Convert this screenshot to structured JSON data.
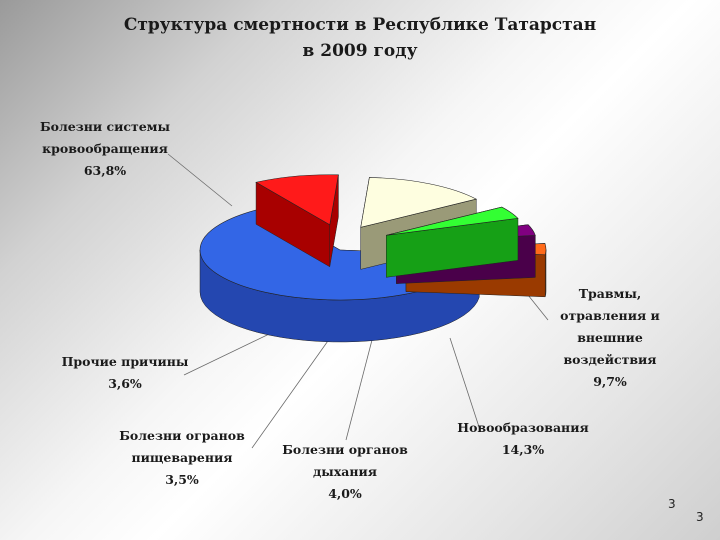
{
  "chart_data": {
    "type": "pie",
    "title_line1": "Структура смертности в Республике Татарстан",
    "title_line2": "в 2009 году",
    "slices": [
      {
        "label_lines": [
          "Болезни системы",
          "кровообращения"
        ],
        "value_text": "63,8%",
        "value": 63.8,
        "color": "#3366e6",
        "side_color": "#2447b0"
      },
      {
        "label_lines": [
          "Травмы,",
          "отравления и",
          "внешние",
          "воздействия"
        ],
        "value_text": "9,7%",
        "value": 9.7,
        "color": "#ff1a1a",
        "side_color": "#a80000"
      },
      {
        "label_lines": [
          "Новообразования"
        ],
        "value_text": "14,3%",
        "value": 14.3,
        "color": "#fefee0",
        "side_color": "#9a9a78"
      },
      {
        "label_lines": [
          "Болезни органов",
          "дыхания"
        ],
        "value_text": "4,0%",
        "value": 4.0,
        "color": "#33ff33",
        "side_color": "#16a016"
      },
      {
        "label_lines": [
          "Болезни огранов",
          "пищеварения"
        ],
        "value_text": "3,5%",
        "value": 3.5,
        "color": "#800080",
        "side_color": "#4a004a"
      },
      {
        "label_lines": [
          "Прочие причины"
        ],
        "value_text": "3,6%",
        "value": 3.6,
        "color": "#ff6a1a",
        "side_color": "#9a3a00"
      }
    ]
  },
  "page_numbers": [
    "3",
    "3"
  ]
}
